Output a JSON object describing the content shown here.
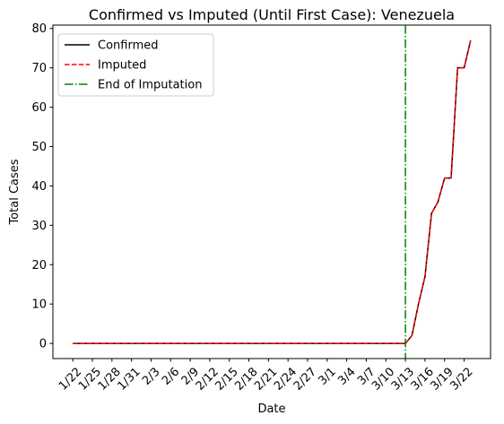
{
  "chart_data": {
    "type": "line",
    "title": "Confirmed vs Imputed (Until First Case): Venezuela",
    "xlabel": "Date",
    "ylabel": "Total Cases",
    "ylim": [
      -3.85,
      80.85
    ],
    "yticks": [
      0,
      10,
      20,
      30,
      40,
      50,
      60,
      70,
      80
    ],
    "xticks": [
      "1/22",
      "1/25",
      "1/28",
      "1/31",
      "2/3",
      "2/6",
      "2/9",
      "2/12",
      "2/15",
      "2/18",
      "2/21",
      "2/24",
      "2/27",
      "3/1",
      "3/4",
      "3/7",
      "3/10",
      "3/13",
      "3/16",
      "3/19",
      "3/22"
    ],
    "x": [
      "1/22",
      "1/23",
      "1/24",
      "1/25",
      "1/26",
      "1/27",
      "1/28",
      "1/29",
      "1/30",
      "1/31",
      "2/1",
      "2/2",
      "2/3",
      "2/4",
      "2/5",
      "2/6",
      "2/7",
      "2/8",
      "2/9",
      "2/10",
      "2/11",
      "2/12",
      "2/13",
      "2/14",
      "2/15",
      "2/16",
      "2/17",
      "2/18",
      "2/19",
      "2/20",
      "2/21",
      "2/22",
      "2/23",
      "2/24",
      "2/25",
      "2/26",
      "2/27",
      "2/28",
      "2/29",
      "3/1",
      "3/2",
      "3/3",
      "3/4",
      "3/5",
      "3/6",
      "3/7",
      "3/8",
      "3/9",
      "3/10",
      "3/11",
      "3/12",
      "3/13",
      "3/14",
      "3/15",
      "3/16",
      "3/17",
      "3/18",
      "3/19",
      "3/20",
      "3/21",
      "3/22",
      "3/23"
    ],
    "series": [
      {
        "name": "Confirmed",
        "color": "#000000",
        "dash": "solid",
        "values": [
          0,
          0,
          0,
          0,
          0,
          0,
          0,
          0,
          0,
          0,
          0,
          0,
          0,
          0,
          0,
          0,
          0,
          0,
          0,
          0,
          0,
          0,
          0,
          0,
          0,
          0,
          0,
          0,
          0,
          0,
          0,
          0,
          0,
          0,
          0,
          0,
          0,
          0,
          0,
          0,
          0,
          0,
          0,
          0,
          0,
          0,
          0,
          0,
          0,
          0,
          0,
          0,
          2,
          10,
          17,
          33,
          36,
          42,
          42,
          70,
          70,
          77
        ]
      },
      {
        "name": "Imputed",
        "color": "#ff0000",
        "dash": "dashed",
        "values": [
          0,
          0,
          0,
          0,
          0,
          0,
          0,
          0,
          0,
          0,
          0,
          0,
          0,
          0,
          0,
          0,
          0,
          0,
          0,
          0,
          0,
          0,
          0,
          0,
          0,
          0,
          0,
          0,
          0,
          0,
          0,
          0,
          0,
          0,
          0,
          0,
          0,
          0,
          0,
          0,
          0,
          0,
          0,
          0,
          0,
          0,
          0,
          0,
          0,
          0,
          0,
          0,
          2,
          10,
          17,
          33,
          36,
          42,
          42,
          70,
          70,
          77
        ]
      }
    ],
    "vline": {
      "name": "End of Imputation",
      "x": "3/13",
      "color": "#008000",
      "dash": "dashdot"
    },
    "legend": "top-left",
    "grid": false
  }
}
